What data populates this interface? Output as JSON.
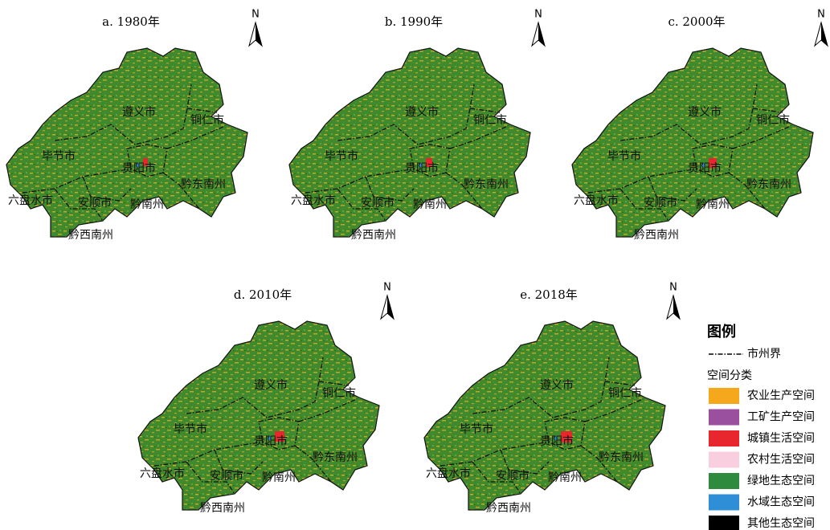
{
  "maps": [
    {
      "title": "a. 1980年",
      "north": "N"
    },
    {
      "title": "b. 1990年",
      "north": "N"
    },
    {
      "title": "c. 2000年",
      "north": "N"
    },
    {
      "title": "d. 2010年",
      "north": "N"
    },
    {
      "title": "e. 2018年",
      "north": "N"
    }
  ],
  "cities": [
    "遵义市",
    "铜仁市",
    "毕节市",
    "贵阳市",
    "黔东南州",
    "六盘水市",
    "安顺市",
    "黔南州",
    "黔西南州"
  ],
  "legend": {
    "title": "图例",
    "boundary": "市州界",
    "group": "空间分类",
    "items": [
      {
        "label": "农业生产空间",
        "color": "#f5a81c"
      },
      {
        "label": "工矿生产空间",
        "color": "#9b4f9f"
      },
      {
        "label": "城镇生活空间",
        "color": "#e8262d"
      },
      {
        "label": "农村生活空间",
        "color": "#f9cfdf"
      },
      {
        "label": "绿地生态空间",
        "color": "#2e8b3e"
      },
      {
        "label": "水域生态空间",
        "color": "#2f8fd6"
      },
      {
        "label": "其他生态空间",
        "color": "#000000"
      }
    ]
  }
}
